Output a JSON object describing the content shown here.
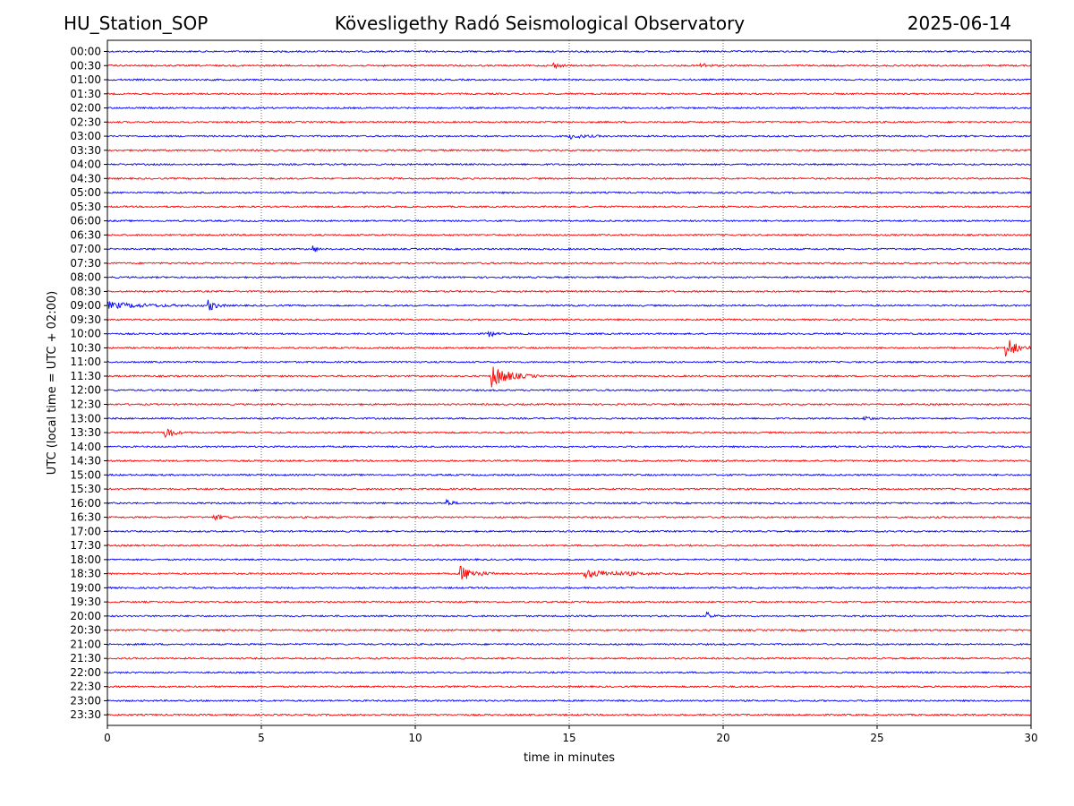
{
  "header": {
    "station": "HU_Station_SOP",
    "observatory": "Kövesligethy Radó Seismological Observatory",
    "date": "2025-06-14"
  },
  "chart_data": {
    "type": "line",
    "chart_kind": "helicorder",
    "xlabel": "time in minutes",
    "ylabel": "UTC (local time = UTC + 02:00)",
    "xlim": [
      0,
      30
    ],
    "x_ticks": [
      "0",
      "5",
      "10",
      "15",
      "20",
      "25",
      "30"
    ],
    "grid": "vertical dotted at each 5 minutes",
    "colors": [
      "#0000ff",
      "#ff0000"
    ],
    "rows": [
      "00:00",
      "00:30",
      "01:00",
      "01:30",
      "02:00",
      "02:30",
      "03:00",
      "03:30",
      "04:00",
      "04:30",
      "05:00",
      "05:30",
      "06:00",
      "06:30",
      "07:00",
      "07:30",
      "08:00",
      "08:30",
      "09:00",
      "09:30",
      "10:00",
      "10:30",
      "11:00",
      "11:30",
      "12:00",
      "12:30",
      "13:00",
      "13:30",
      "14:00",
      "14:30",
      "15:00",
      "15:30",
      "16:00",
      "16:30",
      "17:00",
      "17:30",
      "18:00",
      "18:30",
      "19:00",
      "19:30",
      "20:00",
      "20:30",
      "21:00",
      "21:30",
      "22:00",
      "22:30",
      "23:00",
      "23:30"
    ],
    "events": [
      {
        "row": "00:30",
        "minute": 14.5,
        "amplitude": 0.4,
        "duration": 0.6
      },
      {
        "row": "00:30",
        "minute": 19.3,
        "amplitude": 0.4,
        "duration": 0.6
      },
      {
        "row": "03:00",
        "minute": 15.0,
        "amplitude": 0.4,
        "duration": 1.2
      },
      {
        "row": "07:00",
        "minute": 6.7,
        "amplitude": 0.6,
        "duration": 0.3
      },
      {
        "row": "09:00",
        "minute": 0.0,
        "amplitude": 0.5,
        "duration": 3.4
      },
      {
        "row": "09:00",
        "minute": 3.3,
        "amplitude": 0.9,
        "duration": 0.6
      },
      {
        "row": "10:00",
        "minute": 12.4,
        "amplitude": 0.6,
        "duration": 0.4
      },
      {
        "row": "10:30",
        "minute": 29.2,
        "amplitude": 2.0,
        "duration": 0.8
      },
      {
        "row": "11:30",
        "minute": 12.5,
        "amplitude": 1.8,
        "duration": 1.5
      },
      {
        "row": "13:00",
        "minute": 24.6,
        "amplitude": 0.5,
        "duration": 0.4
      },
      {
        "row": "13:30",
        "minute": 1.9,
        "amplitude": 1.2,
        "duration": 0.6
      },
      {
        "row": "16:00",
        "minute": 11.0,
        "amplitude": 0.6,
        "duration": 0.5
      },
      {
        "row": "16:30",
        "minute": 3.5,
        "amplitude": 0.4,
        "duration": 0.8
      },
      {
        "row": "18:30",
        "minute": 11.5,
        "amplitude": 1.2,
        "duration": 1.2
      },
      {
        "row": "18:30",
        "minute": 15.5,
        "amplitude": 0.6,
        "duration": 3.4
      },
      {
        "row": "20:00",
        "minute": 19.5,
        "amplitude": 0.5,
        "duration": 0.5
      }
    ]
  }
}
